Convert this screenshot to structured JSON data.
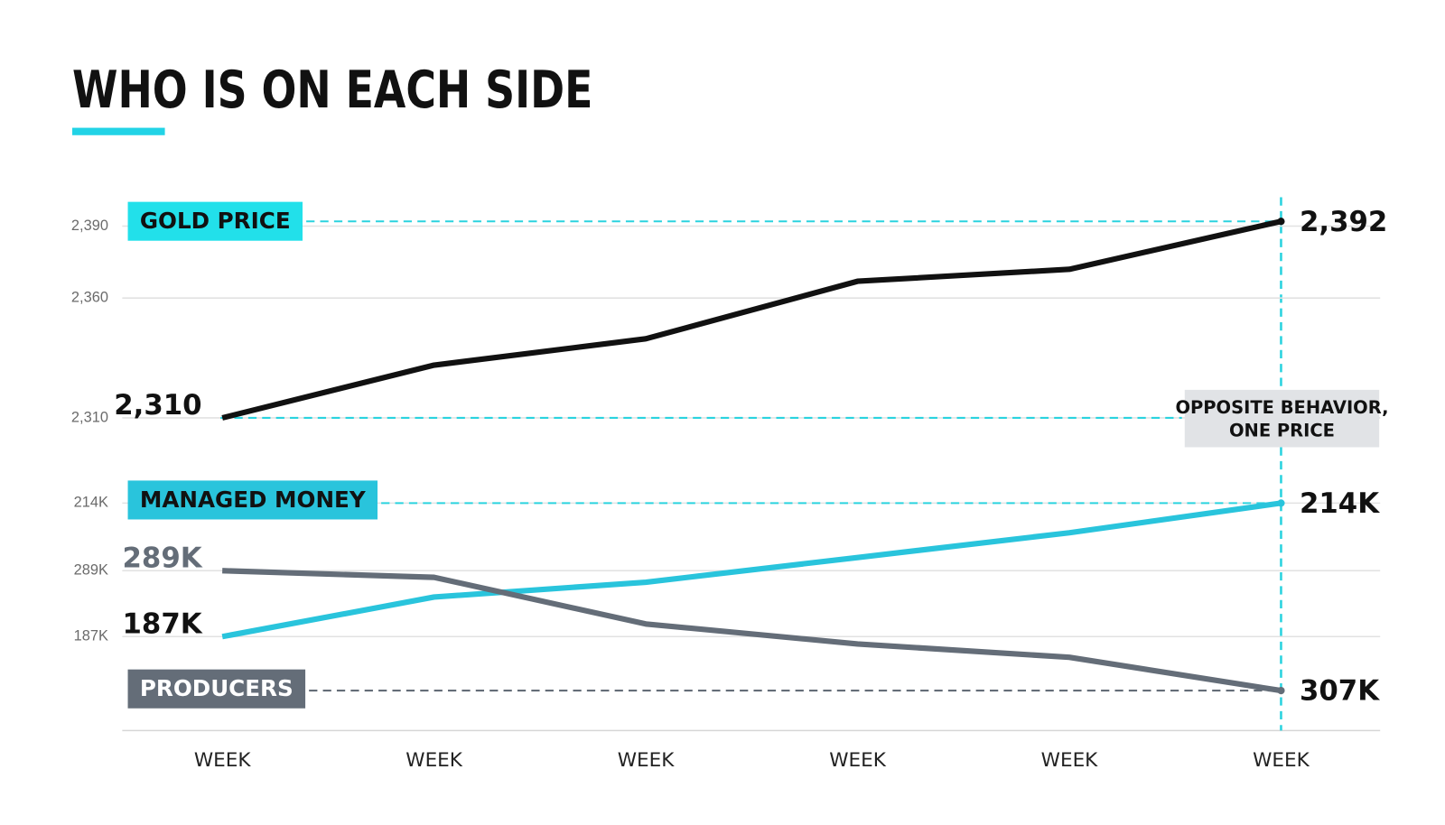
{
  "chart_data": {
    "type": "line",
    "title": "WHO IS ON EACH SIDE",
    "categories": [
      "WEEK",
      "WEEK",
      "WEEK",
      "WEEK",
      "WEEK",
      "WEEK"
    ],
    "annotation_lines": [
      "OPPOSITE BEHAVIOR,",
      "ONE PRICE"
    ],
    "grid": true,
    "panels": [
      {
        "ylim": [
          2302,
          2404
        ],
        "yticks": [
          {
            "value": 2390,
            "label": "2,390"
          },
          {
            "value": 2360,
            "label": "2,360"
          },
          {
            "value": 2310,
            "label": "2,310"
          }
        ],
        "series": [
          {
            "name": "GOLD PRICE",
            "color": "#111111",
            "box_color": "#22e0ea",
            "box_text_color": "#111111",
            "label_color": "#111111",
            "values": [
              2310,
              2332,
              2343,
              2367,
              2372,
              2392
            ],
            "value_labels": [
              "2,310",
              null,
              null,
              null,
              null,
              "2,392"
            ]
          }
        ]
      },
      {
        "ylim": [
          168000,
          216500
        ],
        "yticks": [
          {
            "value": 214000,
            "label": "214K"
          },
          {
            "value": 187000,
            "label": "187K"
          }
        ],
        "y2lim": [
          313000,
          277000
        ],
        "y2ticks": [
          {
            "value": 289000,
            "label": "289K"
          }
        ],
        "series": [
          {
            "name": "MANAGED MONEY",
            "color": "#29c4dc",
            "box_color": "#29c4dc",
            "box_text_color": "#111111",
            "label_color": "#111111",
            "values": [
              187000,
              195000,
              198000,
              203000,
              208000,
              214000
            ],
            "value_labels": [
              "187K",
              null,
              null,
              null,
              null,
              "214K"
            ]
          },
          {
            "name": "PRODUCERS",
            "color": "#646d78",
            "box_color": "#646d78",
            "box_text_color": "#ffffff",
            "label_color": "#646d78",
            "axis": "y2",
            "values": [
              289000,
              290000,
              297000,
              300000,
              302000,
              307000
            ],
            "value_labels": [
              "289K",
              null,
              null,
              null,
              null,
              "307K"
            ]
          }
        ]
      }
    ]
  }
}
